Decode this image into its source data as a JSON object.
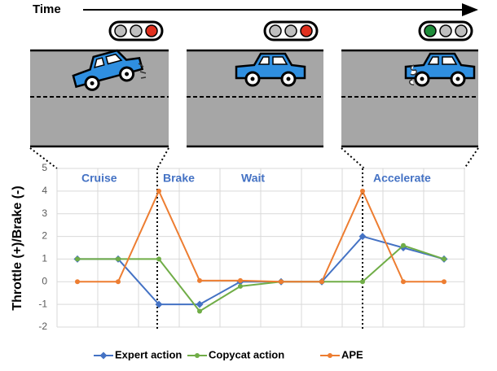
{
  "chart_data": {
    "type": "line",
    "time_label": "Time",
    "y_label": "Throttle (+)/Brake (-)",
    "annotations": [
      "Cruise",
      "Brake",
      "Wait",
      "Accelerate"
    ],
    "categories": [
      null,
      null,
      null,
      null,
      null,
      null,
      null,
      null,
      null,
      null
    ],
    "series": [
      {
        "name": "Expert action",
        "color": "#4472c4",
        "values": [
          1,
          1,
          -1,
          -1,
          0,
          0,
          0,
          2,
          1.5,
          1
        ]
      },
      {
        "name": "Copycat action",
        "color": "#70ad47",
        "values": [
          1,
          1,
          1,
          -1.3,
          -0.2,
          0,
          0,
          0,
          1.6,
          1
        ]
      },
      {
        "name": "APE",
        "color": "#ed7d31",
        "values": [
          0,
          0,
          4,
          0.05,
          0.05,
          0,
          0,
          4,
          0,
          0
        ]
      }
    ],
    "ylim": [
      -2,
      5
    ],
    "yticks": [
      -2,
      -1,
      0,
      1,
      2,
      3,
      4,
      5
    ],
    "grid": true
  }
}
